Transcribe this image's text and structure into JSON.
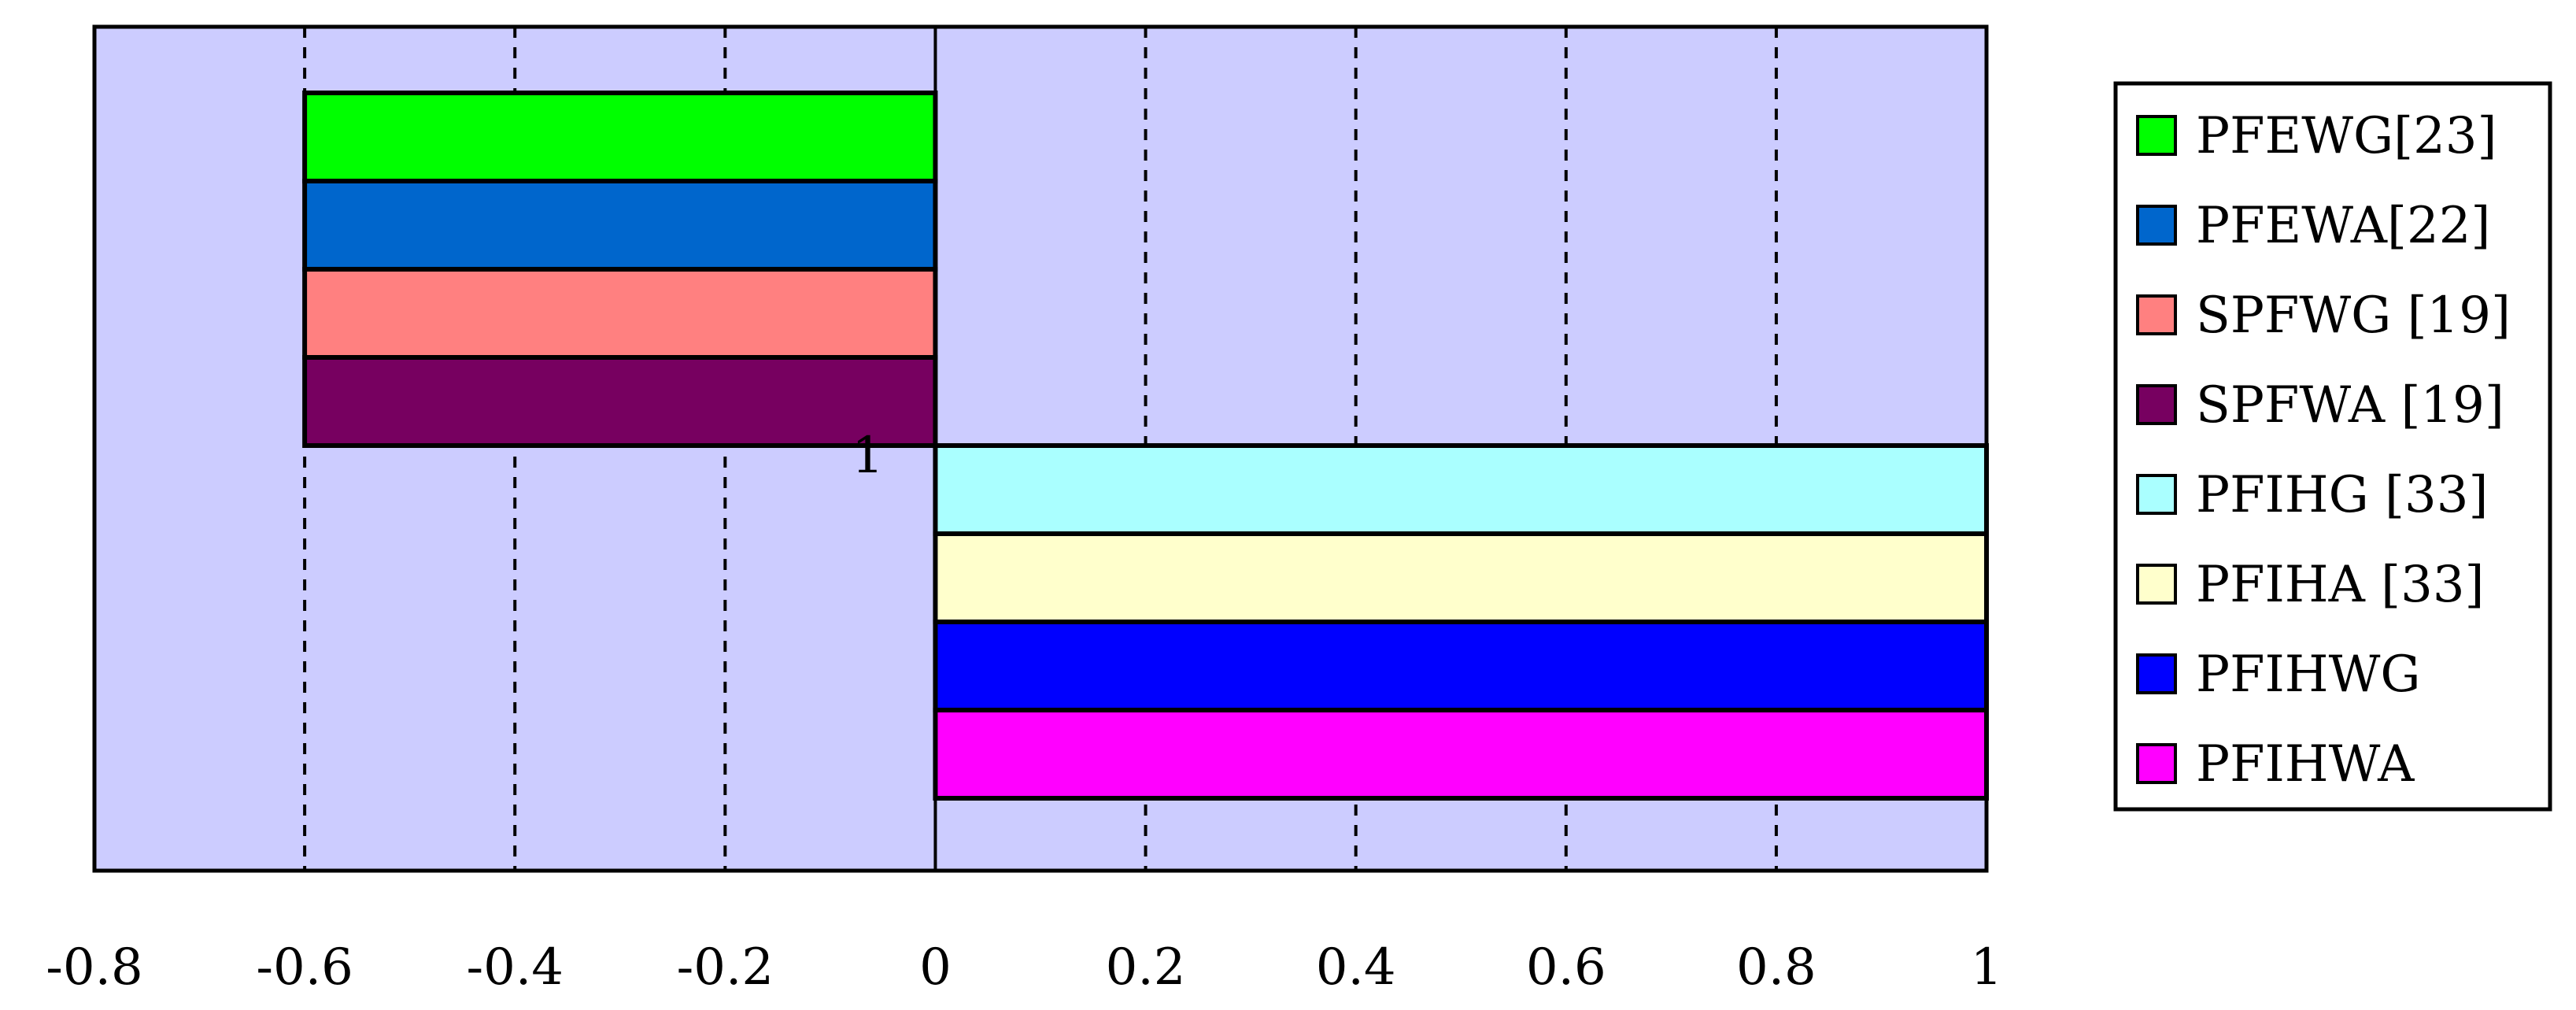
{
  "chart_data": {
    "type": "bar",
    "orientation": "horizontal",
    "categories": [
      "1"
    ],
    "xlim": [
      -0.8,
      1
    ],
    "x_ticks": [
      "-0.8",
      "-0.6",
      "-0.4",
      "-0.2",
      "0",
      "0.2",
      "0.4",
      "0.6",
      "0.8",
      "1"
    ],
    "x_tick_values": [
      -0.8,
      -0.6,
      -0.4,
      -0.2,
      0,
      0.2,
      0.4,
      0.6,
      0.8,
      1
    ],
    "grid": "vertical-dashed",
    "legend_position": "right",
    "plot_background": "#CCCCFF",
    "series": [
      {
        "name": "PFEWG[23]",
        "values": [
          -0.6
        ],
        "color": "#00FF00"
      },
      {
        "name": "PFEWA[22]",
        "values": [
          -0.6
        ],
        "color": "#0066CC"
      },
      {
        "name": "SPFWG [19]",
        "values": [
          -0.6
        ],
        "color": "#FF8080"
      },
      {
        "name": "SPFWA [19]",
        "values": [
          -0.6
        ],
        "color": "#770060"
      },
      {
        "name": "PFIHG [33]",
        "values": [
          1
        ],
        "color": "#AAFFFF"
      },
      {
        "name": "PFIHA [33]",
        "values": [
          1
        ],
        "color": "#FFFFCC"
      },
      {
        "name": "PFIHWG",
        "values": [
          1
        ],
        "color": "#0000FF"
      },
      {
        "name": "PFIHWA",
        "values": [
          1
        ],
        "color": "#FF00FF"
      }
    ]
  }
}
